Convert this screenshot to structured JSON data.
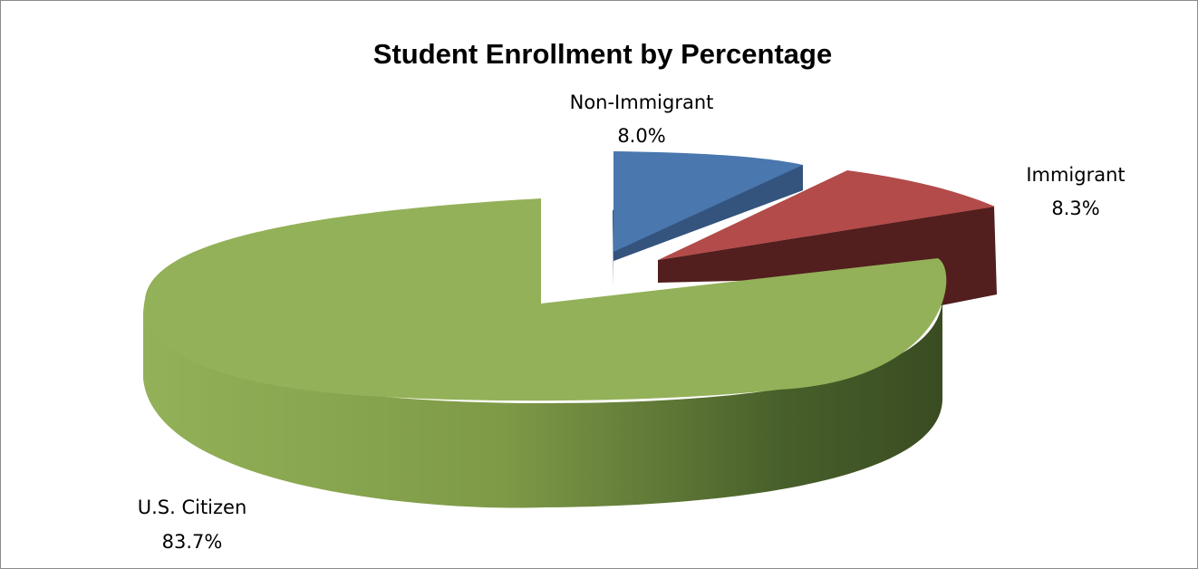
{
  "chart_data": {
    "type": "pie",
    "style": "3d-exploded",
    "title": "Student Enrollment by Percentage",
    "slices": [
      {
        "name": "Non-Immigrant",
        "value": 8.0,
        "label": "8.0%",
        "color": "#4A77AE",
        "side_color": "#2F4D74"
      },
      {
        "name": "Immigrant",
        "value": 8.3,
        "label": "8.3%",
        "color": "#B24B49",
        "side_color": "#521E1E"
      },
      {
        "name": "U.S. Citizen",
        "value": 83.7,
        "label": "83.7%",
        "color": "#93B158",
        "side_color": "#5F7A34"
      }
    ],
    "legend": "none",
    "data_labels": "category-and-percent"
  }
}
